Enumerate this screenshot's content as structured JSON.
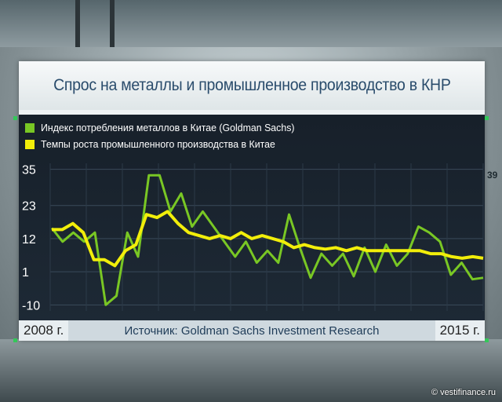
{
  "title": "Спрос на металлы и промышленное производство в КНР",
  "legend": [
    {
      "label": "Индекс потребления металлов в Китае (Goldman Sachs)",
      "color": "#79c724"
    },
    {
      "label": "Темпы роста промышленного производства в Китае",
      "color": "#f2ee0a"
    }
  ],
  "footer": {
    "start": "2008 г.",
    "source": "Источник: Goldman Sachs Investment Research",
    "end": "2015 г."
  },
  "watermark": "© vestifinance.ru",
  "background_text": "39",
  "chart_data": {
    "type": "line",
    "x_range": [
      "2008",
      "2015"
    ],
    "y_ticks": [
      35,
      23,
      12,
      1,
      -10
    ],
    "ylim": [
      -12,
      37
    ],
    "grid": true,
    "legend_position": "top-left",
    "series": [
      {
        "name": "Индекс потребления металлов в Китае (Goldman Sachs)",
        "color": "#79c724",
        "values": [
          15.5,
          11,
          14,
          11,
          14,
          -10,
          -7,
          14,
          6,
          33,
          33,
          21,
          27,
          16,
          21,
          16,
          11,
          6,
          11,
          4,
          8,
          4,
          20,
          9,
          -1,
          7,
          3,
          7,
          -0.5,
          9,
          1,
          10,
          3,
          7,
          16,
          14,
          11,
          0,
          4,
          -1.5,
          -1
        ]
      },
      {
        "name": "Темпы роста промышленного производства в Китае",
        "color": "#f2ee0a",
        "values": [
          15,
          15,
          17,
          14,
          5,
          5,
          3,
          8,
          10,
          20,
          19,
          21,
          17,
          14,
          13,
          12,
          13,
          12,
          14,
          12,
          13,
          12,
          11,
          9,
          10,
          9,
          8.5,
          9,
          8,
          9,
          8,
          8,
          8,
          8,
          8,
          8,
          7,
          7,
          6,
          5.5,
          6,
          5.5
        ]
      }
    ]
  }
}
